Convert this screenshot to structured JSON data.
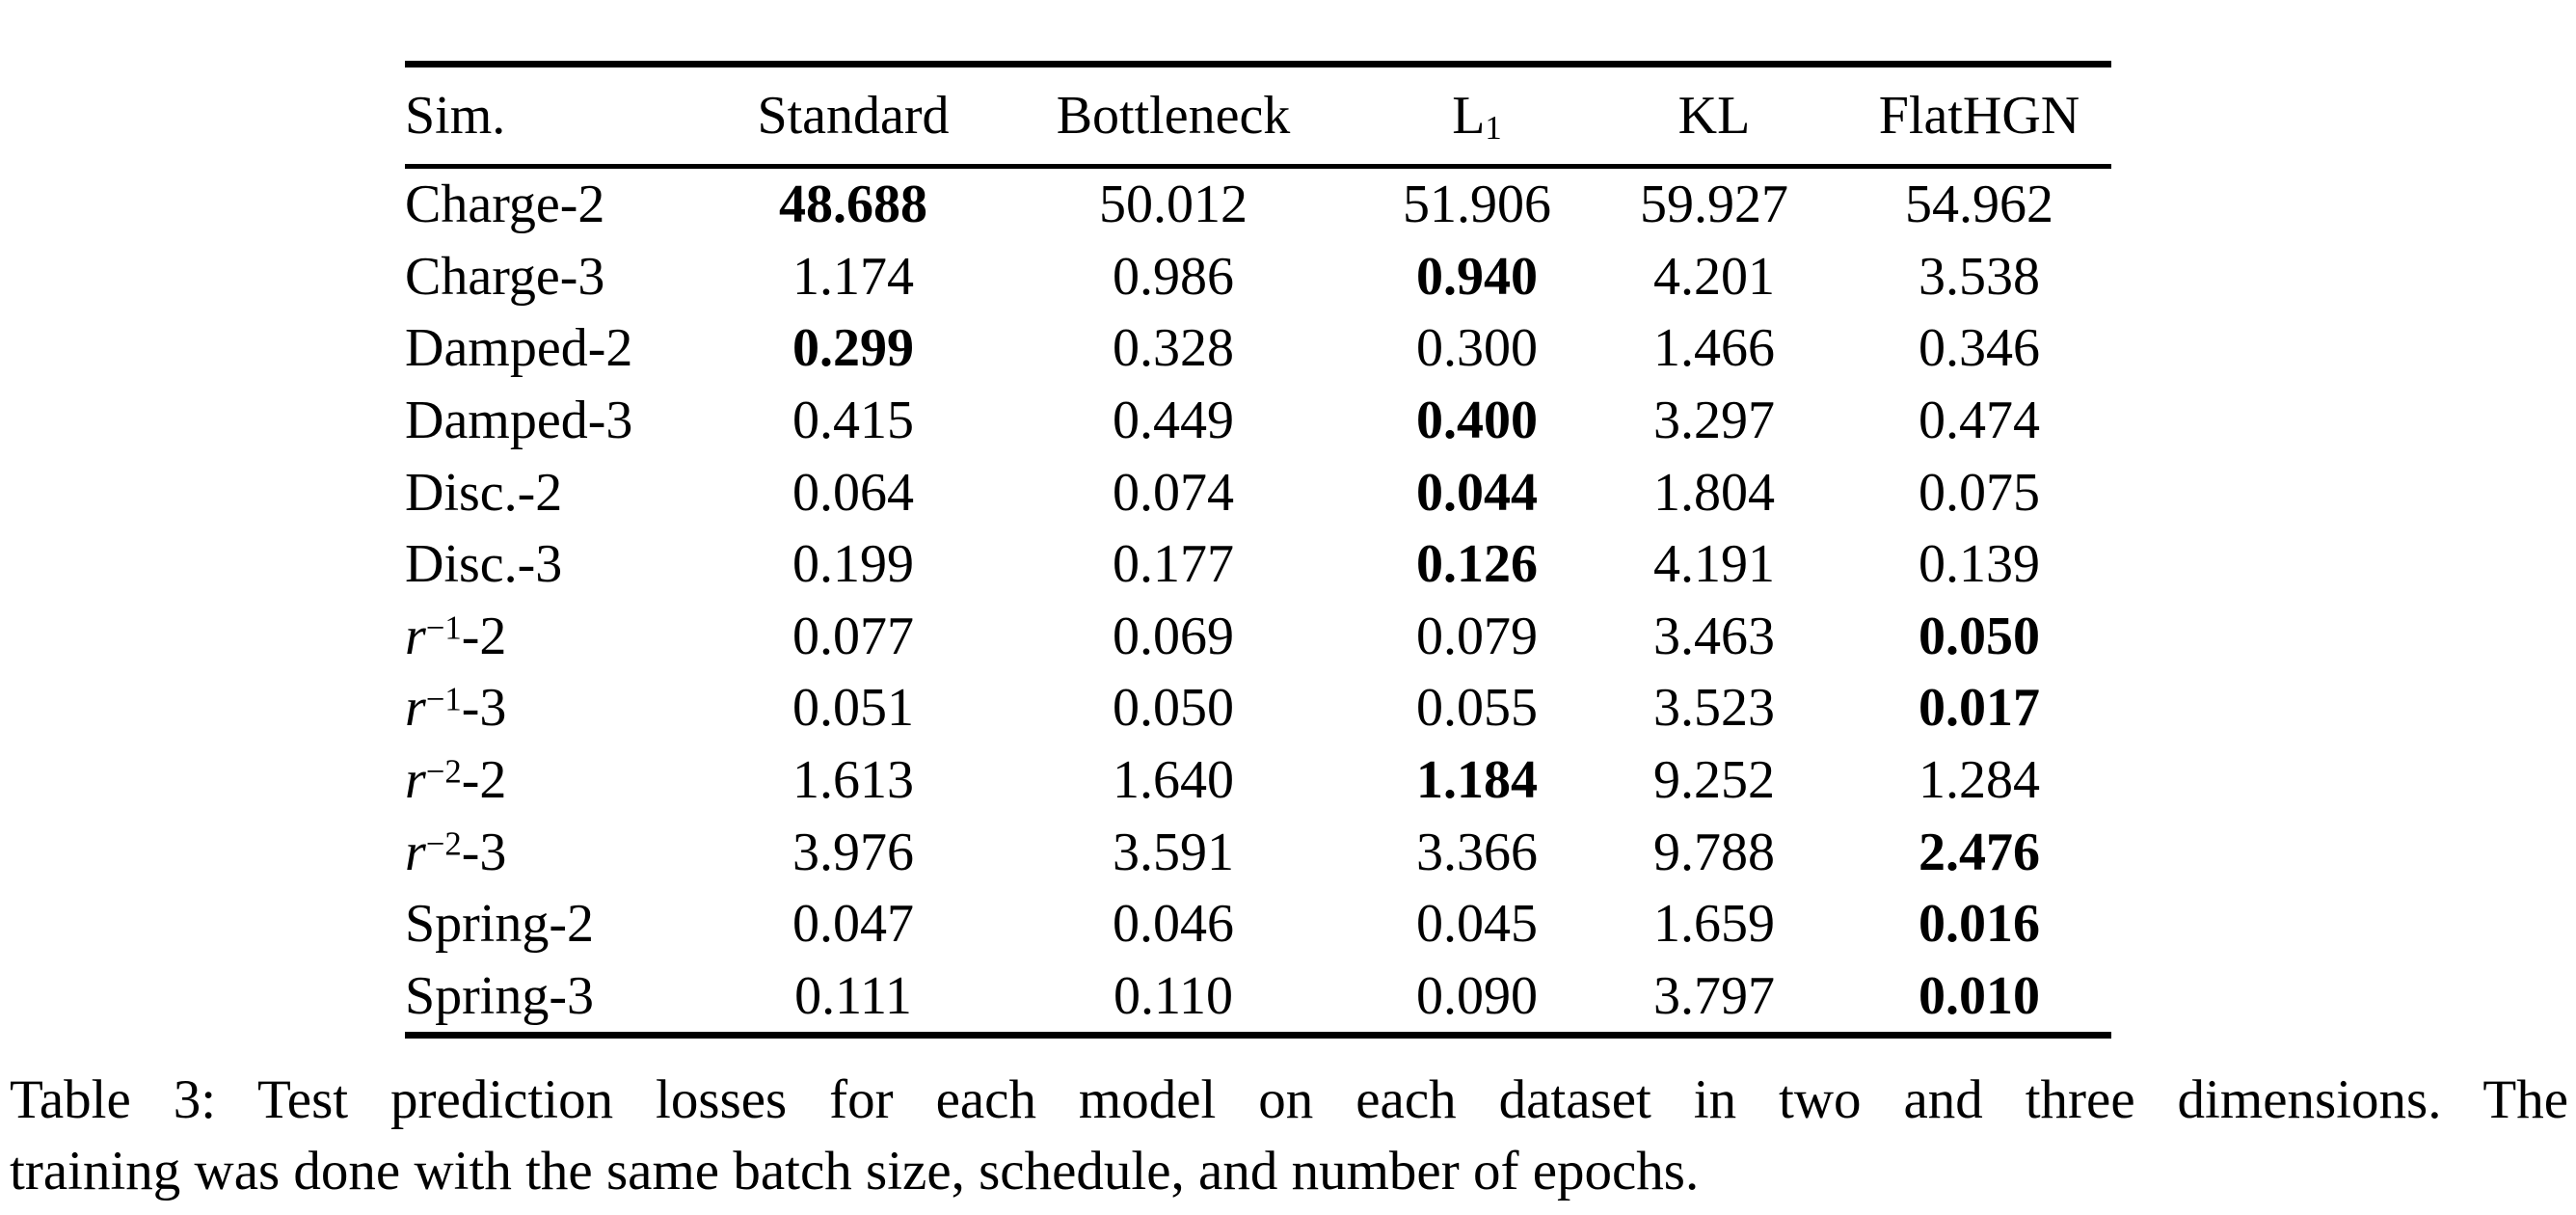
{
  "colors": {
    "text": "#000000",
    "background": "#ffffff"
  },
  "table": {
    "columns": [
      {
        "label": "Sim."
      },
      {
        "label": "Standard"
      },
      {
        "label": "Bottleneck"
      },
      {
        "label": "L",
        "sub": "1"
      },
      {
        "label": "KL"
      },
      {
        "label": "FlatHGN"
      }
    ],
    "rows": [
      {
        "sim": {
          "text": "Charge-2"
        },
        "values": [
          "48.688",
          "50.012",
          "51.906",
          "59.927",
          "54.962"
        ],
        "bold_index": 0
      },
      {
        "sim": {
          "text": "Charge-3"
        },
        "values": [
          "1.174",
          "0.986",
          "0.940",
          "4.201",
          "3.538"
        ],
        "bold_index": 2
      },
      {
        "sim": {
          "text": "Damped-2"
        },
        "values": [
          "0.299",
          "0.328",
          "0.300",
          "1.466",
          "0.346"
        ],
        "bold_index": 0
      },
      {
        "sim": {
          "text": "Damped-3"
        },
        "values": [
          "0.415",
          "0.449",
          "0.400",
          "3.297",
          "0.474"
        ],
        "bold_index": 2
      },
      {
        "sim": {
          "text": "Disc.-2"
        },
        "values": [
          "0.064",
          "0.074",
          "0.044",
          "1.804",
          "0.075"
        ],
        "bold_index": 2
      },
      {
        "sim": {
          "text": "Disc.-3"
        },
        "values": [
          "0.199",
          "0.177",
          "0.126",
          "4.191",
          "0.139"
        ],
        "bold_index": 2
      },
      {
        "sim": {
          "base": "r",
          "sup": "−1",
          "tail": "-2"
        },
        "values": [
          "0.077",
          "0.069",
          "0.079",
          "3.463",
          "0.050"
        ],
        "bold_index": 4
      },
      {
        "sim": {
          "base": "r",
          "sup": "−1",
          "tail": "-3"
        },
        "values": [
          "0.051",
          "0.050",
          "0.055",
          "3.523",
          "0.017"
        ],
        "bold_index": 4
      },
      {
        "sim": {
          "base": "r",
          "sup": "−2",
          "tail": "-2"
        },
        "values": [
          "1.613",
          "1.640",
          "1.184",
          "9.252",
          "1.284"
        ],
        "bold_index": 2
      },
      {
        "sim": {
          "base": "r",
          "sup": "−2",
          "tail": "-3"
        },
        "values": [
          "3.976",
          "3.591",
          "3.366",
          "9.788",
          "2.476"
        ],
        "bold_index": 4
      },
      {
        "sim": {
          "text": "Spring-2"
        },
        "values": [
          "0.047",
          "0.046",
          "0.045",
          "1.659",
          "0.016"
        ],
        "bold_index": 4
      },
      {
        "sim": {
          "text": "Spring-3"
        },
        "values": [
          "0.111",
          "0.110",
          "0.090",
          "3.797",
          "0.010"
        ],
        "bold_index": 4
      }
    ]
  },
  "caption_lines": [
    "Table 3: Test prediction losses for each model on each dataset in two and three dimensions. The",
    "training was done with the same batch size, schedule, and number of epochs."
  ]
}
